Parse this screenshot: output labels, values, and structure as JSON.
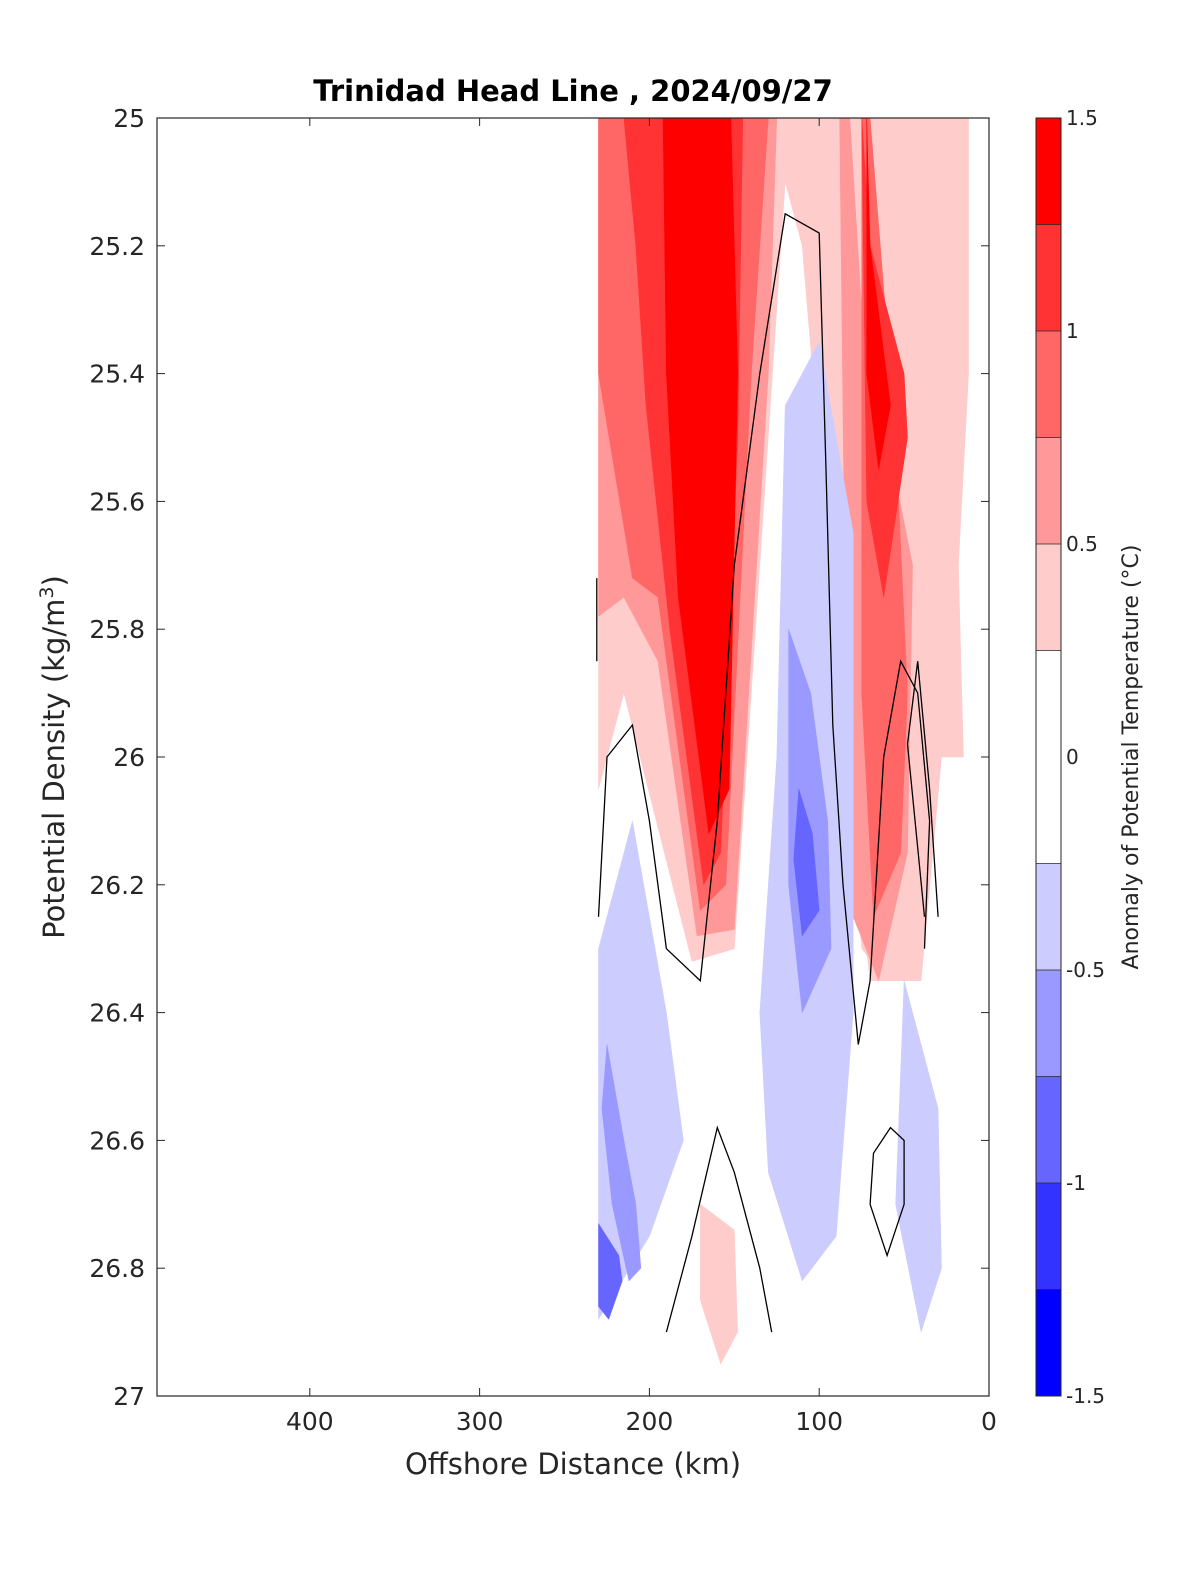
{
  "chart_data": {
    "type": "contourf",
    "title": "Trinidad Head Line , 2024/09/27",
    "xlabel": "Offshore Distance (km)",
    "ylabel_main": "Potential Density (kg/m",
    "ylabel_sup": "3",
    "ylabel_close": ")",
    "colorbar_label": "Anomaly of Potential Temperature (°C)",
    "x_reversed": true,
    "y_reversed": true,
    "xlim": [
      0,
      490
    ],
    "ylim": [
      25,
      27
    ],
    "x_ticks": [
      400,
      300,
      200,
      100,
      0
    ],
    "x_tick_labels": [
      "400",
      "300",
      "200",
      "100",
      "0"
    ],
    "y_ticks": [
      25,
      25.2,
      25.4,
      25.6,
      25.8,
      26,
      26.2,
      26.4,
      26.6,
      26.8,
      27
    ],
    "y_tick_labels": [
      "25",
      "25.2",
      "25.4",
      "25.6",
      "25.8",
      "26",
      "26.2",
      "26.4",
      "26.6",
      "26.8",
      "27"
    ],
    "colorbar_levels": [
      -1.5,
      -1.25,
      -1,
      -0.75,
      -0.5,
      -0.25,
      0.25,
      0.5,
      0.75,
      1,
      1.25,
      1.5
    ],
    "colorbar_colors": [
      "#0000ff",
      "#3333ff",
      "#6666ff",
      "#9999ff",
      "#ccccff",
      "#ffffff",
      "#ffcccc",
      "#ff9999",
      "#ff6666",
      "#ff3333",
      "#ff0000"
    ],
    "colorbar_ticks": [
      -1.5,
      -1,
      -0.5,
      0,
      0.5,
      1,
      1.5
    ],
    "colorbar_tick_labels": [
      "-1.5",
      "-1",
      "-0.5",
      "0",
      "0.5",
      "1",
      "1.5"
    ],
    "contour_line_color": "#000000",
    "regions": [
      {
        "name": "warm-core-level-1",
        "color": "#ffcccc",
        "points": [
          [
            230,
            25
          ],
          [
            70,
            25
          ],
          [
            50,
            25.2
          ],
          [
            40,
            25.8
          ],
          [
            38,
            26.2
          ],
          [
            60,
            26.35
          ],
          [
            75,
            26.3
          ],
          [
            85,
            26.0
          ],
          [
            110,
            25.2
          ],
          [
            120,
            25.1
          ],
          [
            150,
            26.3
          ],
          [
            175,
            26.32
          ],
          [
            215,
            25.9
          ],
          [
            230,
            26.05
          ]
        ]
      },
      {
        "name": "warm-core-level-2",
        "color": "#ff9999",
        "points": [
          [
            230,
            25
          ],
          [
            125,
            25
          ],
          [
            130,
            25.4
          ],
          [
            150,
            26.27
          ],
          [
            172,
            26.28
          ],
          [
            195,
            25.85
          ],
          [
            215,
            25.75
          ],
          [
            230,
            25.78
          ]
        ]
      },
      {
        "name": "warm-core-level-3",
        "color": "#ff6666",
        "points": [
          [
            230,
            25
          ],
          [
            130,
            25
          ],
          [
            140,
            25.4
          ],
          [
            155,
            26.2
          ],
          [
            170,
            26.24
          ],
          [
            195,
            25.75
          ],
          [
            210,
            25.72
          ],
          [
            230,
            25.4
          ]
        ]
      },
      {
        "name": "warm-core-level-4",
        "color": "#ff3333",
        "points": [
          [
            215,
            25
          ],
          [
            145,
            25
          ],
          [
            148,
            25.5
          ],
          [
            158,
            26.15
          ],
          [
            168,
            26.2
          ],
          [
            188,
            25.8
          ],
          [
            202,
            25.45
          ],
          [
            208,
            25.2
          ]
        ]
      },
      {
        "name": "warm-core-level-5",
        "color": "#ff0000",
        "points": [
          [
            192,
            25
          ],
          [
            152,
            25
          ],
          [
            148,
            25.4
          ],
          [
            153,
            26.05
          ],
          [
            165,
            26.12
          ],
          [
            183,
            25.75
          ],
          [
            190,
            25.4
          ]
        ]
      },
      {
        "name": "coastal-warm-level-1",
        "color": "#ffcccc",
        "points": [
          [
            90,
            25
          ],
          [
            12,
            25
          ],
          [
            12,
            25.4
          ],
          [
            18,
            25.7
          ],
          [
            15,
            26.0
          ],
          [
            28,
            26.0
          ],
          [
            40,
            26.35
          ],
          [
            70,
            26.35
          ],
          [
            90,
            25.9
          ]
        ]
      },
      {
        "name": "coastal-warm-level-2",
        "color": "#ff9999",
        "points": [
          [
            88,
            25
          ],
          [
            82,
            25
          ],
          [
            75,
            25.3
          ],
          [
            45,
            25.7
          ],
          [
            48,
            26.15
          ],
          [
            65,
            26.35
          ],
          [
            80,
            26.25
          ],
          [
            85,
            25.7
          ]
        ]
      },
      {
        "name": "coastal-warm-level-3",
        "color": "#ff6666",
        "points": [
          [
            75,
            25
          ],
          [
            70,
            25
          ],
          [
            55,
            25.5
          ],
          [
            48,
            25.9
          ],
          [
            52,
            26.15
          ],
          [
            68,
            26.25
          ],
          [
            75,
            25.9
          ]
        ]
      },
      {
        "name": "coastal-warm-level-4",
        "color": "#ff3333",
        "points": [
          [
            75,
            25
          ],
          [
            70,
            25.2
          ],
          [
            50,
            25.4
          ],
          [
            48,
            25.5
          ],
          [
            62,
            25.75
          ],
          [
            72,
            25.6
          ]
        ]
      },
      {
        "name": "coastal-warm-level-5",
        "color": "#ff0000",
        "points": [
          [
            72,
            25
          ],
          [
            70,
            25.2
          ],
          [
            58,
            25.45
          ],
          [
            65,
            25.55
          ],
          [
            72,
            25.4
          ]
        ]
      },
      {
        "name": "deep-warm-lens",
        "color": "#ffcccc",
        "points": [
          [
            170,
            26.7
          ],
          [
            150,
            26.74
          ],
          [
            148,
            26.9
          ],
          [
            158,
            26.95
          ],
          [
            170,
            26.85
          ]
        ]
      },
      {
        "name": "cool-west-level-1",
        "color": "#ccccff",
        "points": [
          [
            230,
            26.3
          ],
          [
            210,
            26.1
          ],
          [
            190,
            26.4
          ],
          [
            180,
            26.6
          ],
          [
            200,
            26.75
          ],
          [
            230,
            26.88
          ]
        ]
      },
      {
        "name": "cool-west-level-2",
        "color": "#9999ff",
        "points": [
          [
            225,
            26.45
          ],
          [
            215,
            26.6
          ],
          [
            208,
            26.7
          ],
          [
            205,
            26.8
          ],
          [
            212,
            26.82
          ],
          [
            222,
            26.7
          ],
          [
            228,
            26.55
          ]
        ]
      },
      {
        "name": "cool-west-level-3",
        "color": "#6666ff",
        "points": [
          [
            230,
            26.73
          ],
          [
            218,
            26.78
          ],
          [
            216,
            26.82
          ],
          [
            224,
            26.88
          ],
          [
            230,
            26.86
          ]
        ]
      },
      {
        "name": "cool-central-level-1",
        "color": "#ccccff",
        "points": [
          [
            120,
            25.45
          ],
          [
            100,
            25.35
          ],
          [
            80,
            25.65
          ],
          [
            80,
            26.4
          ],
          [
            90,
            26.75
          ],
          [
            110,
            26.82
          ],
          [
            130,
            26.65
          ],
          [
            135,
            26.4
          ],
          [
            125,
            26.0
          ]
        ]
      },
      {
        "name": "cool-central-level-2",
        "color": "#9999ff",
        "points": [
          [
            118,
            25.8
          ],
          [
            105,
            25.9
          ],
          [
            95,
            26.1
          ],
          [
            93,
            26.3
          ],
          [
            110,
            26.4
          ],
          [
            118,
            26.2
          ]
        ]
      },
      {
        "name": "cool-central-level-3",
        "color": "#6666ff",
        "points": [
          [
            112,
            26.05
          ],
          [
            104,
            26.12
          ],
          [
            100,
            26.24
          ],
          [
            110,
            26.28
          ],
          [
            115,
            26.16
          ]
        ]
      },
      {
        "name": "cool-coastal",
        "color": "#ccccff",
        "points": [
          [
            50,
            26.35
          ],
          [
            30,
            26.55
          ],
          [
            28,
            26.8
          ],
          [
            40,
            26.9
          ],
          [
            55,
            26.7
          ]
        ]
      }
    ],
    "contour_lines": [
      {
        "name": "zero-contour-west",
        "points": [
          [
            230,
            26.25
          ],
          [
            225,
            26.0
          ],
          [
            210,
            25.95
          ],
          [
            200,
            26.1
          ],
          [
            190,
            26.3
          ],
          [
            170,
            26.35
          ],
          [
            160,
            26.1
          ],
          [
            150,
            25.7
          ],
          [
            135,
            25.4
          ],
          [
            120,
            25.15
          ],
          [
            100,
            25.18
          ],
          [
            96,
            25.55
          ],
          [
            92,
            25.95
          ],
          [
            86,
            26.2
          ],
          [
            77,
            26.45
          ],
          [
            70,
            26.35
          ],
          [
            62,
            26.0
          ],
          [
            52,
            25.85
          ],
          [
            42,
            25.9
          ],
          [
            35,
            26.1
          ],
          [
            38,
            26.3
          ]
        ]
      },
      {
        "name": "zero-contour-west-fragment",
        "points": [
          [
            231,
            25.72
          ],
          [
            231,
            25.85
          ]
        ]
      },
      {
        "name": "zero-contour-deep-lens",
        "points": [
          [
            190,
            26.9
          ],
          [
            175,
            26.75
          ],
          [
            160,
            26.58
          ],
          [
            150,
            26.65
          ],
          [
            135,
            26.8
          ],
          [
            128,
            26.9
          ]
        ]
      },
      {
        "name": "zero-contour-coastal-loop",
        "points": [
          [
            70,
            26.7
          ],
          [
            60,
            26.78
          ],
          [
            50,
            26.7
          ],
          [
            50,
            26.6
          ],
          [
            58,
            26.58
          ],
          [
            68,
            26.62
          ],
          [
            70,
            26.7
          ]
        ]
      },
      {
        "name": "zero-contour-coastal-spur",
        "points": [
          [
            30,
            26.25
          ],
          [
            35,
            26.05
          ],
          [
            42,
            25.85
          ],
          [
            48,
            25.98
          ],
          [
            38,
            26.25
          ]
        ]
      }
    ]
  }
}
